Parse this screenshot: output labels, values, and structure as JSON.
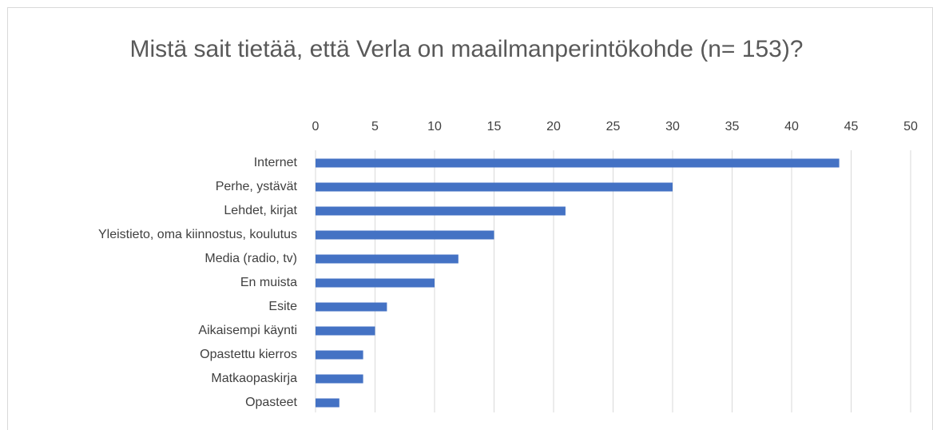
{
  "chart_data": {
    "type": "bar",
    "orientation": "horizontal",
    "title": "Mistä sait tietää, että Verla on maailmanperintökohde (n= 153)?",
    "categories": [
      "Internet",
      "Perhe, ystävät",
      "Lehdet, kirjat",
      "Yleistieto, oma kiinnostus, koulutus",
      "Media (radio, tv)",
      "En muista",
      "Esite",
      "Aikaisempi käynti",
      "Opastettu kierros",
      "Matkaopaskirja",
      "Opasteet"
    ],
    "values": [
      44,
      30,
      21,
      15,
      12,
      10,
      6,
      5,
      4,
      4,
      2
    ],
    "color": "#4472c4",
    "xlim": [
      0,
      50
    ],
    "xticks": [
      0,
      5,
      10,
      15,
      20,
      25,
      30,
      35,
      40,
      45,
      50
    ],
    "grid": true
  }
}
